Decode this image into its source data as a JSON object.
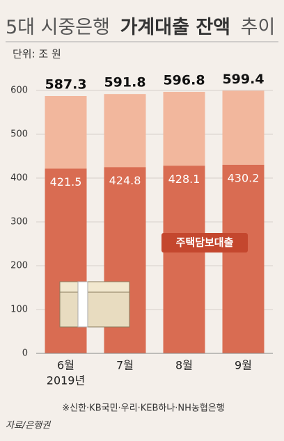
{
  "chart_data": {
    "type": "bar",
    "title_parts": [
      "5대 시중은행",
      "가계대출 잔액",
      "추이"
    ],
    "unit": "단위: 조 원",
    "categories": [
      "6월",
      "7월",
      "8월",
      "9월"
    ],
    "year_label": "2019년",
    "totals": [
      587.3,
      591.8,
      596.8,
      599.4
    ],
    "totals_color": "#f2b79d",
    "series": [
      {
        "name": "주택담보대출",
        "color": "#d96c52",
        "values": [
          421.5,
          424.8,
          428.1,
          430.2
        ]
      }
    ],
    "ylim": [
      0,
      600
    ],
    "yticks": [
      0,
      100,
      200,
      300,
      400,
      500,
      600
    ],
    "grid": true,
    "note": "※신한·KB국민·우리·KEB하나·NH농협은행",
    "source": "자료/은행권"
  }
}
